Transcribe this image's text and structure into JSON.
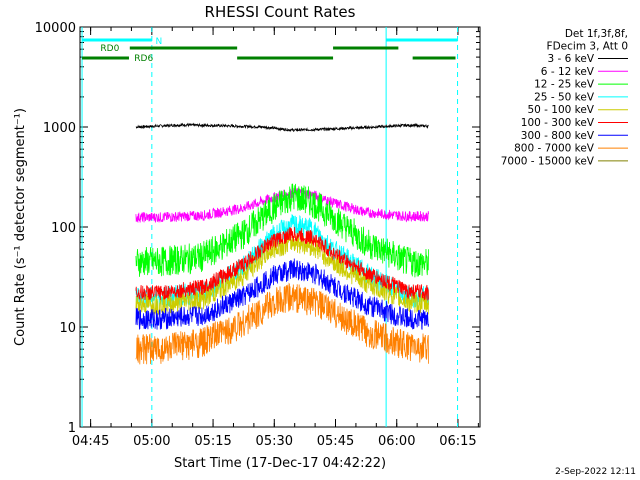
{
  "chart_data": {
    "type": "line",
    "title": "RHESSI Count Rates",
    "xlabel": "Start Time (17-Dec-17 04:42:22)",
    "ylabel": "Count Rate (s⁻¹ detector segment⁻¹)",
    "y_scale": "log",
    "ylim": [
      1,
      10000
    ],
    "xlim_minutes_after_0442": [
      0,
      98
    ],
    "y_ticks": [
      "1",
      "10",
      "100",
      "1000",
      "10000"
    ],
    "x_ticks": [
      "04:45",
      "05:00",
      "05:15",
      "05:30",
      "05:45",
      "06:00",
      "06:15"
    ],
    "legend_header": [
      "Det 1f,3f,8f,",
      "FDecim 3, Att 0"
    ],
    "series": [
      {
        "name": "3 - 6 keV",
        "color": "#000000",
        "x": [
          13.7,
          25,
          35,
          45,
          52,
          60,
          70,
          80,
          85.4
        ],
        "y": [
          1000,
          1050,
          1030,
          1000,
          930,
          950,
          990,
          1040,
          1020
        ]
      },
      {
        "name": "6 - 12 keV",
        "color": "#ff00ff",
        "x": [
          13.7,
          20,
          30,
          40,
          47,
          52,
          57,
          62,
          70,
          80,
          85.4
        ],
        "y": [
          125,
          125,
          130,
          155,
          195,
          220,
          210,
          175,
          140,
          128,
          128
        ]
      },
      {
        "name": "12 - 25 keV",
        "color": "#00ff00",
        "x": [
          13.7,
          20,
          30,
          40,
          47,
          52,
          57,
          62,
          70,
          80,
          85.4
        ],
        "y": [
          45,
          45,
          50,
          85,
          150,
          205,
          175,
          125,
          70,
          45,
          43
        ]
      },
      {
        "name": "25 - 50 keV",
        "color": "#00ffff",
        "x": [
          13.7,
          20,
          30,
          40,
          47,
          52,
          57,
          62,
          70,
          80,
          85.4
        ],
        "y": [
          20,
          20,
          22,
          40,
          80,
          105,
          95,
          60,
          35,
          20,
          20
        ]
      },
      {
        "name": "50 - 100 keV",
        "color": "#cccc00",
        "x": [
          13.7,
          20,
          30,
          40,
          47,
          52,
          57,
          62,
          70,
          80,
          85.4
        ],
        "y": [
          17,
          17,
          19,
          33,
          60,
          72,
          65,
          45,
          28,
          18,
          17
        ]
      },
      {
        "name": "100 - 300 keV",
        "color": "#ff0000",
        "x": [
          13.7,
          20,
          30,
          40,
          47,
          52,
          57,
          62,
          70,
          80,
          85.4
        ],
        "y": [
          22,
          22,
          25,
          42,
          72,
          85,
          78,
          55,
          35,
          23,
          22
        ]
      },
      {
        "name": "300 - 800 keV",
        "color": "#0000ff",
        "x": [
          13.7,
          20,
          30,
          40,
          47,
          52,
          57,
          62,
          70,
          80,
          85.4
        ],
        "y": [
          12,
          12,
          13,
          20,
          32,
          38,
          35,
          26,
          17,
          12,
          12
        ]
      },
      {
        "name": "800 - 7000 keV",
        "color": "#ff8000",
        "x": [
          13.7,
          20,
          30,
          40,
          47,
          52,
          57,
          62,
          70,
          80,
          85.4
        ],
        "y": [
          6,
          6,
          7,
          11,
          17,
          20,
          18,
          14,
          9,
          6.5,
          6
        ]
      },
      {
        "name": "7000 - 15000 keV",
        "color": "#808000",
        "x": [],
        "y": []
      }
    ],
    "annotations": {
      "flag_labels": [
        "N",
        "RD0",
        "RD6"
      ],
      "legend_placement": "right, outside plot"
    }
  },
  "footer": {
    "date_stamp": "2-Sep-2022 12:11"
  }
}
